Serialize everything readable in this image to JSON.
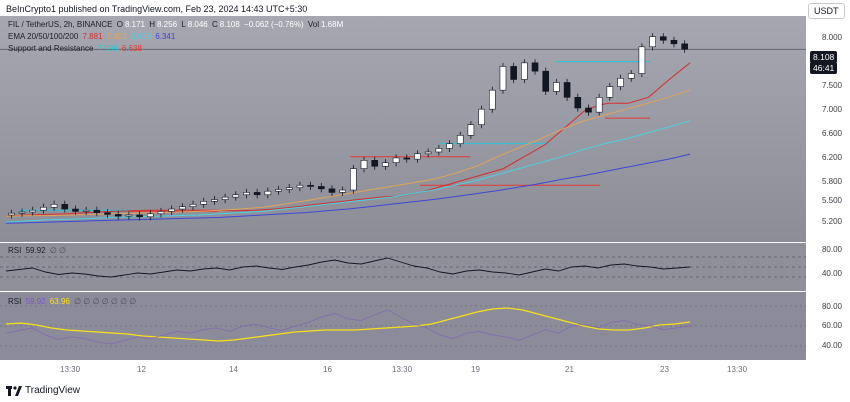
{
  "header": {
    "caption": "BeInCrypto1 published on TradingView.com, Feb 23, 2024 14:43 UTC+5:30"
  },
  "symbol": {
    "pair": "FIL / TetherUS, 2h, BINANCE",
    "o_label": "O",
    "o": "8.171",
    "h_label": "H",
    "h": "8.256",
    "l_label": "L",
    "l": "8.046",
    "c_label": "C",
    "c": "8.108",
    "chg": "−0.062 (−0.76%)",
    "vol_label": "Vol",
    "vol": "1.68M"
  },
  "ema": {
    "label": "EMA 20/50/100/200",
    "v20": "7.881",
    "v50": "7.423",
    "v100": "6.906",
    "v200": "6.341",
    "colors": {
      "ema20": "#d32f2f",
      "ema50": "#e0a35a",
      "ema100": "#4dd0e1",
      "ema200": "#3f47d6"
    }
  },
  "sr": {
    "label": "Support and Resistance",
    "support": "7.999",
    "resistance": "6.638",
    "support_color": "#26c6da",
    "resistance_color": "#e53935"
  },
  "axis": {
    "currency": "USDT",
    "price_ticks": [
      "8.000",
      "7.500",
      "7.000",
      "6.600",
      "6.200",
      "5.800",
      "5.500",
      "5.200"
    ],
    "last_price": "8.108",
    "countdown": "46:41",
    "rsi1_ticks": [
      "80.00",
      "40.00"
    ],
    "rsi2_ticks": [
      "80.00",
      "60.00",
      "40.00"
    ]
  },
  "time_axis": [
    "13:30",
    "12",
    "14",
    "16",
    "13:30",
    "19",
    "21",
    "23",
    "13:30"
  ],
  "rsi1": {
    "label": "RSI",
    "value": "59.92",
    "extras": "∅ ∅"
  },
  "rsi2": {
    "label": "RSI",
    "value1": "59.92",
    "value2": "63.96",
    "extras": "∅ ∅ ∅ ∅ ∅ ∅ ∅"
  },
  "footer": {
    "brand": "TradingView"
  },
  "chart_data": {
    "type": "candlestick",
    "title": "FIL / TetherUS, 2h, BINANCE",
    "ylim": [
      5.0,
      8.5
    ],
    "series": [
      {
        "name": "price",
        "values": [
          5.35,
          5.37,
          5.4,
          5.45,
          5.5,
          5.42,
          5.38,
          5.4,
          5.36,
          5.33,
          5.3,
          5.32,
          5.29,
          5.34,
          5.38,
          5.42,
          5.46,
          5.5,
          5.55,
          5.58,
          5.62,
          5.66,
          5.7,
          5.66,
          5.72,
          5.75,
          5.78,
          5.82,
          5.8,
          5.76,
          5.7,
          5.74,
          6.1,
          6.24,
          6.14,
          6.2,
          6.28,
          6.26,
          6.35,
          6.38,
          6.44,
          6.52,
          6.66,
          6.84,
          7.1,
          7.42,
          7.82,
          7.6,
          7.88,
          7.74,
          7.4,
          7.55,
          7.3,
          7.12,
          7.05,
          7.3,
          7.48,
          7.62,
          7.7,
          8.15,
          8.32,
          8.26,
          8.2,
          8.108
        ]
      },
      {
        "name": "EMA 20",
        "values": [
          5.3,
          5.32,
          5.33,
          5.34,
          5.36,
          5.38,
          5.39,
          5.4,
          5.4,
          5.4,
          5.4,
          5.39,
          5.4,
          5.42,
          5.46,
          5.5,
          5.54,
          5.58,
          5.62,
          5.64,
          5.7,
          5.8,
          5.9,
          6.0,
          6.1,
          6.3,
          6.5,
          6.8,
          7.1,
          7.2,
          7.2,
          7.3,
          7.6,
          7.88
        ]
      },
      {
        "name": "EMA 50",
        "values": [
          5.3,
          5.31,
          5.31,
          5.32,
          5.33,
          5.34,
          5.35,
          5.36,
          5.37,
          5.38,
          5.4,
          5.42,
          5.45,
          5.5,
          5.56,
          5.62,
          5.68,
          5.74,
          5.8,
          5.86,
          5.92,
          6.02,
          6.14,
          6.3,
          6.45,
          6.6,
          6.76,
          6.9,
          7.0,
          7.1,
          7.2,
          7.3,
          7.42
        ]
      },
      {
        "name": "EMA 100",
        "values": [
          5.2,
          5.22,
          5.24,
          5.25,
          5.26,
          5.28,
          5.29,
          5.3,
          5.31,
          5.32,
          5.34,
          5.36,
          5.38,
          5.42,
          5.46,
          5.5,
          5.54,
          5.58,
          5.62,
          5.68,
          5.74,
          5.82,
          5.9,
          6.0,
          6.1,
          6.2,
          6.3,
          6.42,
          6.52,
          6.6,
          6.7,
          6.8,
          6.906
        ]
      },
      {
        "name": "EMA 200",
        "values": [
          5.18,
          5.19,
          5.2,
          5.21,
          5.22,
          5.23,
          5.24,
          5.25,
          5.26,
          5.27,
          5.28,
          5.3,
          5.32,
          5.34,
          5.36,
          5.39,
          5.42,
          5.46,
          5.5,
          5.54,
          5.58,
          5.63,
          5.68,
          5.73,
          5.79,
          5.85,
          5.92,
          5.98,
          6.05,
          6.12,
          6.19,
          6.26,
          6.341
        ]
      }
    ],
    "rsi1": [
      52,
      55,
      58,
      50,
      45,
      48,
      46,
      42,
      40,
      44,
      48,
      46,
      50,
      54,
      52,
      56,
      58,
      54,
      60,
      62,
      58,
      55,
      60,
      64,
      70,
      74,
      68,
      66,
      72,
      78,
      70,
      62,
      58,
      50,
      46,
      52,
      54,
      50,
      48,
      44,
      50,
      56,
      52,
      60,
      62,
      58,
      64,
      66,
      62,
      60,
      56,
      58,
      60
    ],
    "rsi2": [
      62,
      63,
      61,
      58,
      56,
      55,
      54,
      53,
      52,
      50,
      49,
      48,
      47,
      46,
      45,
      46,
      48,
      50,
      52,
      54,
      55,
      56,
      56,
      56,
      57,
      58,
      59,
      60,
      62,
      66,
      70,
      74,
      77,
      78,
      76,
      72,
      68,
      64,
      60,
      57,
      56,
      56,
      58,
      61,
      62,
      63.96
    ]
  }
}
